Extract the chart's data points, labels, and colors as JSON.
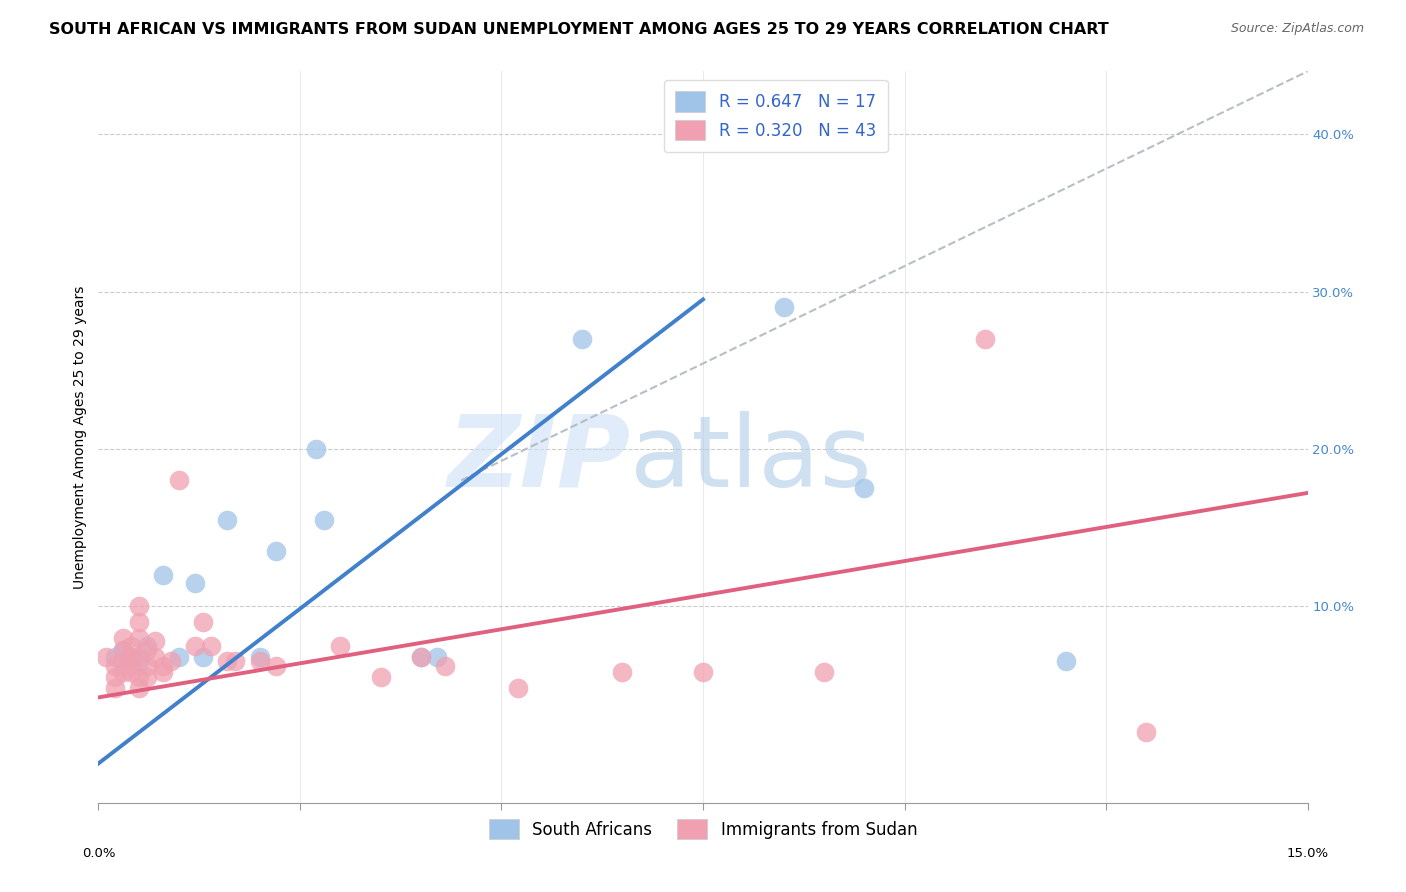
{
  "title": "SOUTH AFRICAN VS IMMIGRANTS FROM SUDAN UNEMPLOYMENT AMONG AGES 25 TO 29 YEARS CORRELATION CHART",
  "source": "Source: ZipAtlas.com",
  "ylabel": "Unemployment Among Ages 25 to 29 years",
  "xlim": [
    0.0,
    0.15
  ],
  "ylim": [
    -0.025,
    0.44
  ],
  "blue_color": "#a0c4e8",
  "pink_color": "#f0a0b0",
  "line_blue": "#4080cc",
  "line_pink": "#e06080",
  "line_gray": "#b0b8c0",
  "blue_line_x": [
    0.0,
    0.075
  ],
  "blue_line_y": [
    0.0,
    0.295
  ],
  "pink_line_x": [
    0.0,
    0.15
  ],
  "pink_line_y": [
    0.042,
    0.172
  ],
  "gray_line_x": [
    0.045,
    0.15
  ],
  "gray_line_y": [
    0.18,
    0.44
  ],
  "legend_label1": "South Africans",
  "legend_label2": "Immigrants from Sudan",
  "sa_points": [
    [
      0.002,
      0.068
    ],
    [
      0.003,
      0.072
    ],
    [
      0.004,
      0.068
    ],
    [
      0.005,
      0.065
    ],
    [
      0.006,
      0.075
    ],
    [
      0.008,
      0.12
    ],
    [
      0.01,
      0.068
    ],
    [
      0.012,
      0.115
    ],
    [
      0.013,
      0.068
    ],
    [
      0.016,
      0.155
    ],
    [
      0.02,
      0.068
    ],
    [
      0.022,
      0.135
    ],
    [
      0.027,
      0.2
    ],
    [
      0.028,
      0.155
    ],
    [
      0.04,
      0.068
    ],
    [
      0.042,
      0.068
    ],
    [
      0.06,
      0.27
    ],
    [
      0.085,
      0.29
    ],
    [
      0.095,
      0.175
    ],
    [
      0.12,
      0.065
    ]
  ],
  "imm_points": [
    [
      0.001,
      0.068
    ],
    [
      0.002,
      0.055
    ],
    [
      0.002,
      0.062
    ],
    [
      0.002,
      0.048
    ],
    [
      0.003,
      0.058
    ],
    [
      0.003,
      0.065
    ],
    [
      0.003,
      0.072
    ],
    [
      0.003,
      0.08
    ],
    [
      0.004,
      0.062
    ],
    [
      0.004,
      0.068
    ],
    [
      0.004,
      0.075
    ],
    [
      0.004,
      0.058
    ],
    [
      0.005,
      0.068
    ],
    [
      0.005,
      0.08
    ],
    [
      0.005,
      0.09
    ],
    [
      0.005,
      0.1
    ],
    [
      0.005,
      0.055
    ],
    [
      0.005,
      0.048
    ],
    [
      0.006,
      0.072
    ],
    [
      0.006,
      0.062
    ],
    [
      0.006,
      0.055
    ],
    [
      0.007,
      0.068
    ],
    [
      0.007,
      0.078
    ],
    [
      0.008,
      0.062
    ],
    [
      0.008,
      0.058
    ],
    [
      0.009,
      0.065
    ],
    [
      0.01,
      0.18
    ],
    [
      0.012,
      0.075
    ],
    [
      0.013,
      0.09
    ],
    [
      0.014,
      0.075
    ],
    [
      0.016,
      0.065
    ],
    [
      0.017,
      0.065
    ],
    [
      0.02,
      0.065
    ],
    [
      0.022,
      0.062
    ],
    [
      0.03,
      0.075
    ],
    [
      0.035,
      0.055
    ],
    [
      0.04,
      0.068
    ],
    [
      0.043,
      0.062
    ],
    [
      0.052,
      0.048
    ],
    [
      0.065,
      0.058
    ],
    [
      0.075,
      0.058
    ],
    [
      0.09,
      0.058
    ],
    [
      0.11,
      0.27
    ],
    [
      0.13,
      0.02
    ]
  ],
  "watermark_zip": "ZIP",
  "watermark_atlas": "atlas",
  "title_fontsize": 11.5,
  "axis_fontsize": 10,
  "tick_fontsize": 9.5,
  "legend_fontsize": 12
}
